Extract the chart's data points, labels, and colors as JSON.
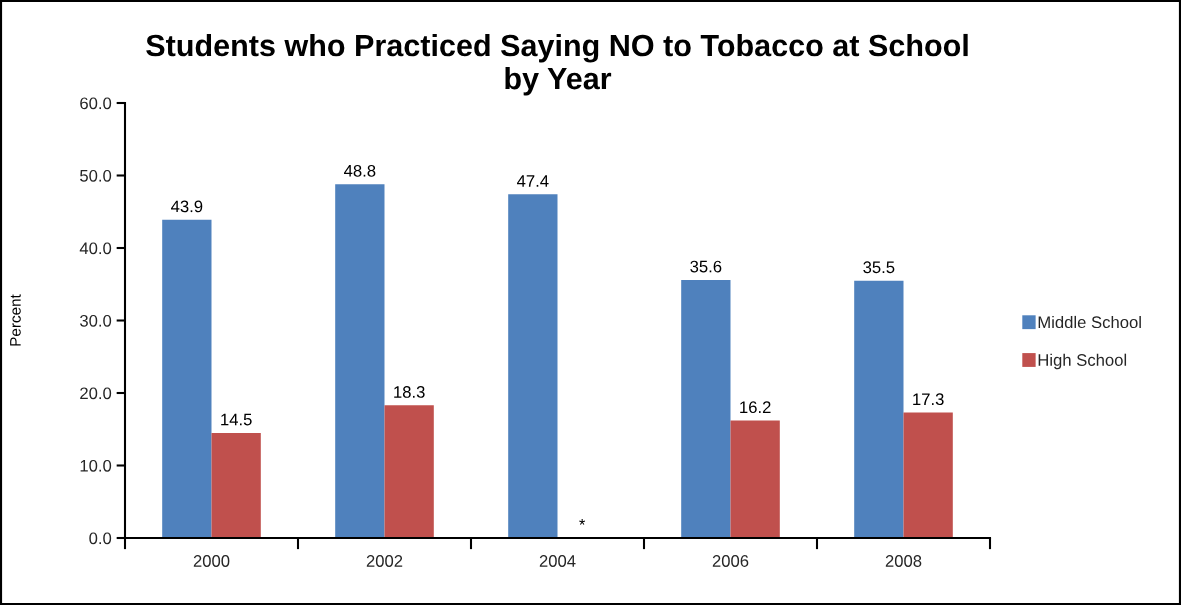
{
  "chart_data": {
    "type": "bar",
    "title": "Students who Practiced Saying NO to Tobacco at School\nby Year",
    "ylabel": "Percent",
    "categories": [
      "2000",
      "2002",
      "2004",
      "2006",
      "2008"
    ],
    "series": [
      {
        "name": "Middle School",
        "color": "#4f81bd",
        "values": [
          43.9,
          48.8,
          47.4,
          35.6,
          35.5
        ],
        "value_labels": [
          "43.9",
          "48.8",
          "47.4",
          "35.6",
          "35.5"
        ]
      },
      {
        "name": "High School",
        "color": "#c0504d",
        "values": [
          14.5,
          18.3,
          null,
          16.2,
          17.3
        ],
        "value_labels": [
          "14.5",
          "18.3",
          "*",
          "16.2",
          "17.3"
        ]
      }
    ],
    "ylim": [
      0,
      60
    ],
    "yticks": [
      {
        "value": 0,
        "label": "0.0"
      },
      {
        "value": 10,
        "label": "10.0"
      },
      {
        "value": 20,
        "label": "20.0"
      },
      {
        "value": 30,
        "label": "30.0"
      },
      {
        "value": 40,
        "label": "40.0"
      },
      {
        "value": 50,
        "label": "50.0"
      },
      {
        "value": 60,
        "label": "60.0"
      }
    ],
    "grid": false,
    "legend": "right"
  }
}
